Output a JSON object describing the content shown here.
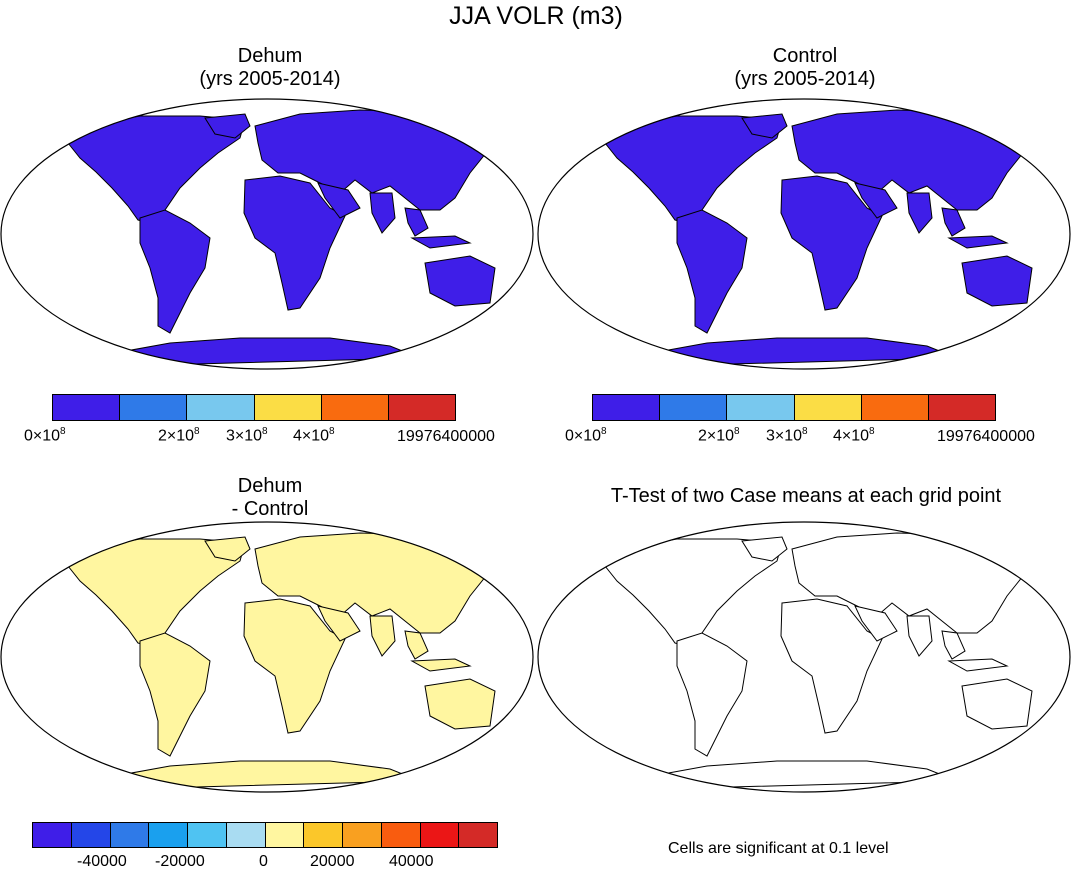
{
  "main_title": "JJA VOLR (m3)",
  "panels": {
    "dehum": {
      "title_line1": "Dehum",
      "title_line2": "(yrs 2005-2014)",
      "colorbar": [
        "#3f1ee8",
        "#2f7ae8",
        "#78c8ee",
        "#fbdd45",
        "#f96b0f",
        "#d42a27"
      ],
      "tick_labels": [
        {
          "mant": "0×10",
          "exp": "8"
        },
        {
          "mant": "2×10",
          "exp": "8"
        },
        {
          "mant": "3×10",
          "exp": "8"
        },
        {
          "mant": "4×10",
          "exp": "8"
        },
        {
          "text": "19976400000"
        }
      ]
    },
    "control": {
      "title_line1": "Control",
      "title_line2": "(yrs 2005-2014)",
      "colorbar": [
        "#3f1ee8",
        "#2f7ae8",
        "#78c8ee",
        "#fbdd45",
        "#f96b0f",
        "#d42a27"
      ],
      "tick_labels": [
        {
          "mant": "0×10",
          "exp": "8"
        },
        {
          "mant": "2×10",
          "exp": "8"
        },
        {
          "mant": "3×10",
          "exp": "8"
        },
        {
          "mant": "4×10",
          "exp": "8"
        },
        {
          "text": "19976400000"
        }
      ]
    },
    "diff": {
      "title_line1": "Dehum",
      "title_line2": "- Control",
      "colorbar": [
        "#3f1ee8",
        "#2446e8",
        "#2f7ae8",
        "#1aa0ee",
        "#4fc3f2",
        "#a9dcf2",
        "#fff6a0",
        "#fbc72a",
        "#f9a020",
        "#f95c0f",
        "#eb1616",
        "#d42a27"
      ],
      "tick_labels": [
        "-40000",
        "-20000",
        "0",
        "20000",
        "40000"
      ]
    },
    "ttest": {
      "title": "T-Test of two Case means at each grid point",
      "note": "Cells are significant at 0.1 level"
    }
  },
  "map_colors": {
    "ocean": "#ffffff",
    "land_volr": "#3f1ee8",
    "land_diff": "#fff6a0",
    "outline": "#000000"
  }
}
